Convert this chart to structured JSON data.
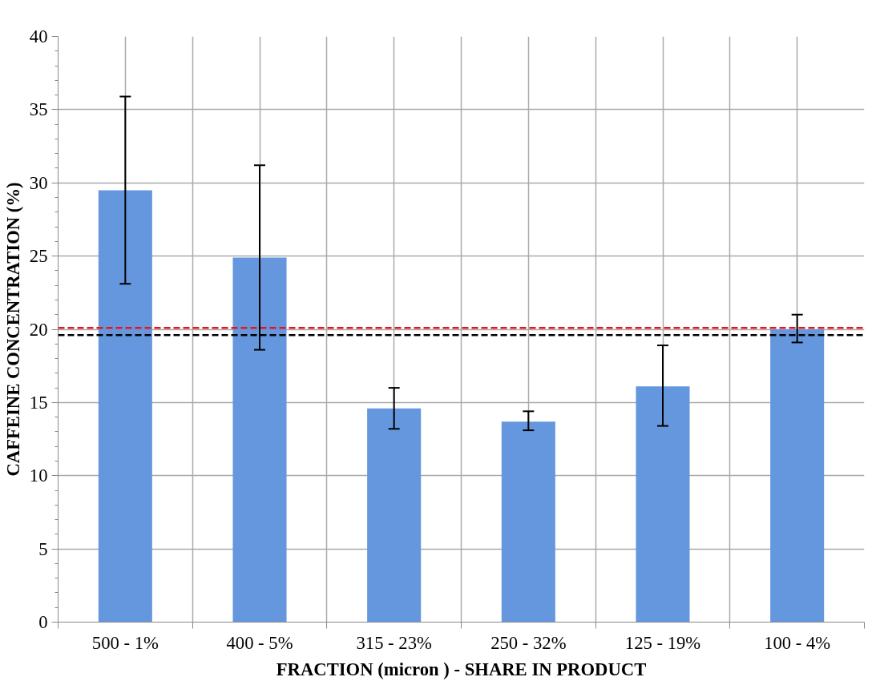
{
  "chart_data": {
    "type": "bar",
    "xlabel": "FRACTION (micron ) - SHARE IN PRODUCT",
    "ylabel": "CAFFEINE CONCENTRATION (%)",
    "categories": [
      "500 - 1%",
      "400 - 5%",
      "315 - 23%",
      "250 - 32%",
      "125 - 19%",
      "100 - 4%"
    ],
    "values": [
      29.5,
      24.9,
      14.6,
      13.7,
      16.1,
      20.0
    ],
    "errors": [
      [
        23.1,
        35.9
      ],
      [
        18.6,
        31.2
      ],
      [
        13.2,
        16.0
      ],
      [
        13.1,
        14.4
      ],
      [
        13.4,
        18.9
      ],
      [
        19.1,
        21.0
      ]
    ],
    "color": "#6597de",
    "ylim": [
      0,
      40
    ],
    "yticks": [
      0,
      5,
      10,
      15,
      20,
      25,
      30,
      35,
      40
    ],
    "grid": true,
    "ref_lines": [
      {
        "axis": "y",
        "value": 20.1,
        "color": "#e8141b",
        "line_style": "dashed"
      },
      {
        "axis": "y",
        "value": 19.6,
        "color": "#000000",
        "line_style": "dashed"
      }
    ]
  }
}
